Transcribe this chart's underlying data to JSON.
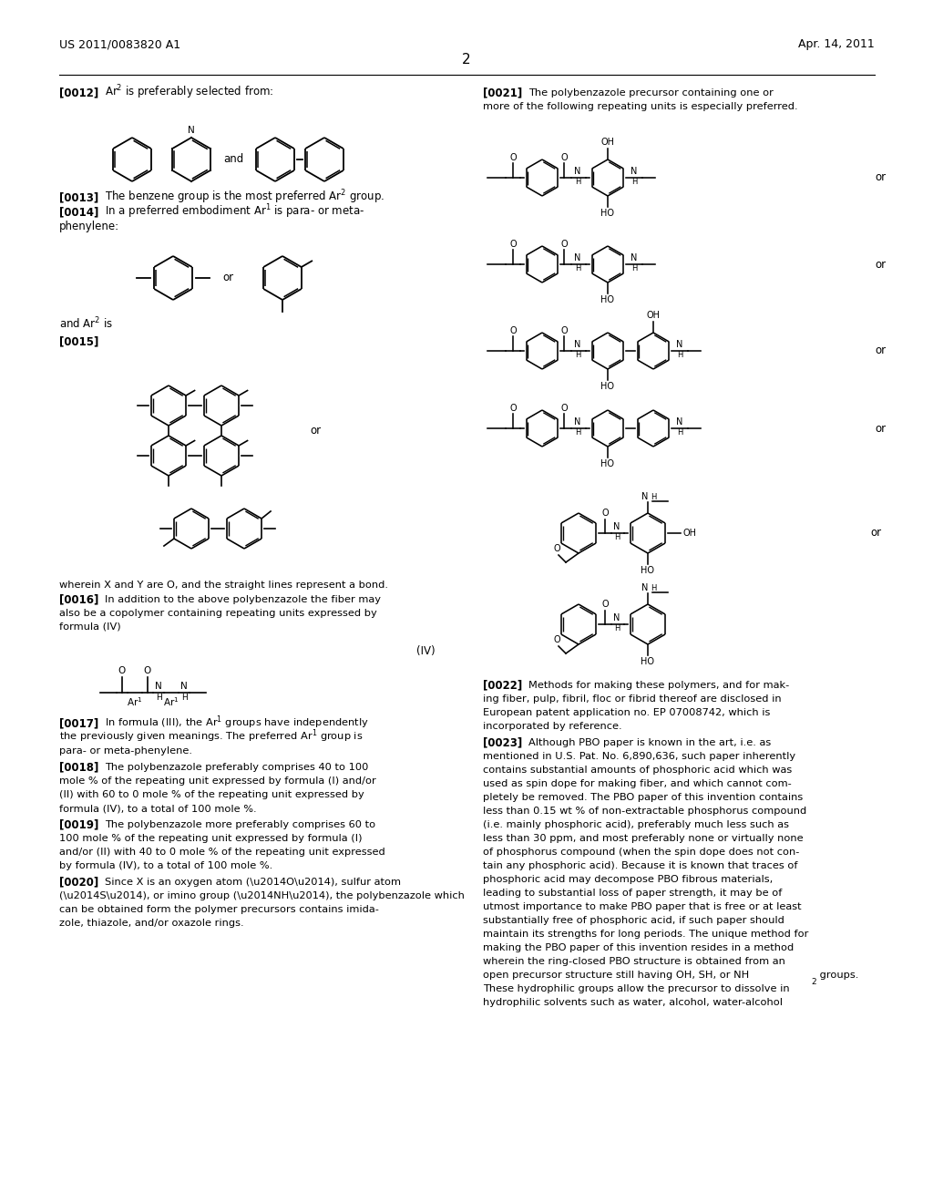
{
  "page_number": "2",
  "patent_number": "US 2011/0083820 A1",
  "patent_date": "Apr. 14, 2011",
  "background_color": "#ffffff",
  "text_color": "#000000",
  "line_color": "#000000",
  "figsize": [
    10.24,
    13.2
  ],
  "dpi": 100
}
